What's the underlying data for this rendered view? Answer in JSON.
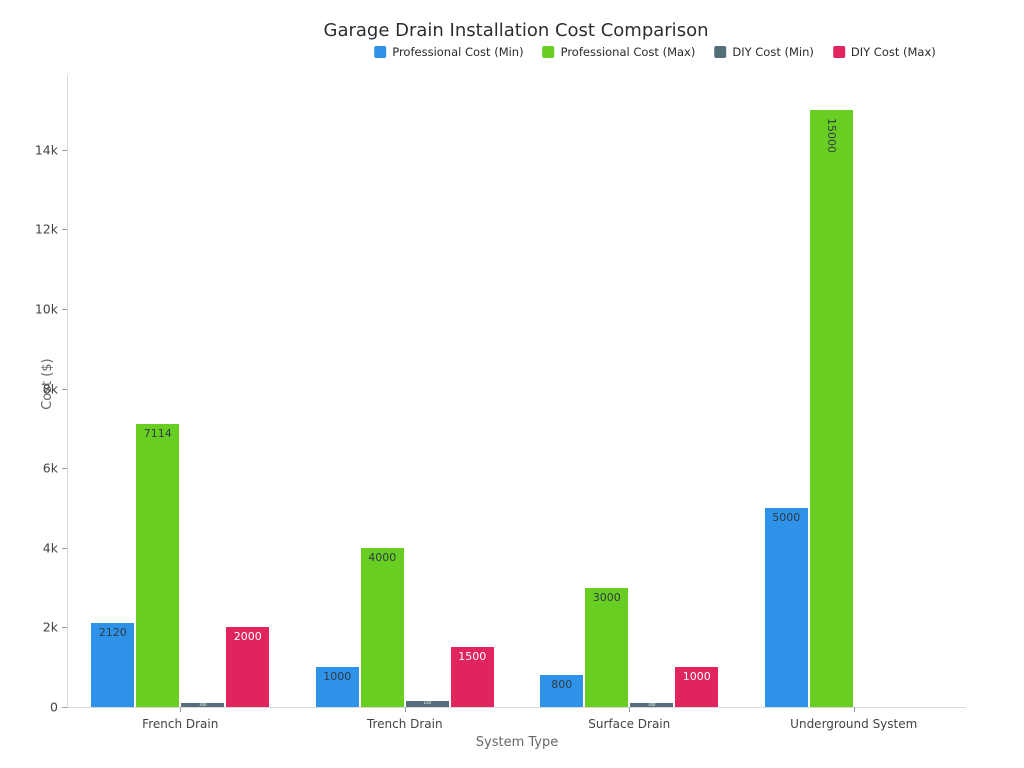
{
  "title": "Garage Drain Installation Cost Comparison",
  "chart_data": {
    "type": "bar",
    "title": "Garage Drain Installation Cost Comparison",
    "xlabel": "System Type",
    "ylabel": "Cost ($)",
    "categories": [
      "French Drain",
      "Trench Drain",
      "Surface Drain",
      "Underground System"
    ],
    "series": [
      {
        "name": "Professional Cost (Min)",
        "color": "#2E93E8",
        "label_color": "#2f3b42",
        "values": [
          2120,
          1000,
          800,
          5000
        ]
      },
      {
        "name": "Professional Cost (Max)",
        "color": "#68CE22",
        "label_color": "#2f3b42",
        "values": [
          7114,
          4000,
          3000,
          15000
        ]
      },
      {
        "name": "DIY Cost (Min)",
        "color": "#546E7A",
        "label_color": "#ffffff",
        "values": [
          100,
          150,
          100,
          0
        ]
      },
      {
        "name": "DIY Cost (Max)",
        "color": "#E0245E",
        "label_color": "#ffffff",
        "values": [
          2000,
          1500,
          1000,
          0
        ]
      }
    ],
    "yticks": [
      {
        "v": 0,
        "label": "0"
      },
      {
        "v": 2000,
        "label": "2k"
      },
      {
        "v": 4000,
        "label": "4k"
      },
      {
        "v": 6000,
        "label": "6k"
      },
      {
        "v": 8000,
        "label": "8k"
      },
      {
        "v": 10000,
        "label": "10k"
      },
      {
        "v": 12000,
        "label": "12k"
      },
      {
        "v": 14000,
        "label": "14k"
      }
    ],
    "ylim": [
      0,
      15880
    ],
    "grid": false,
    "legend_position": "top",
    "background": "#ffffff"
  }
}
